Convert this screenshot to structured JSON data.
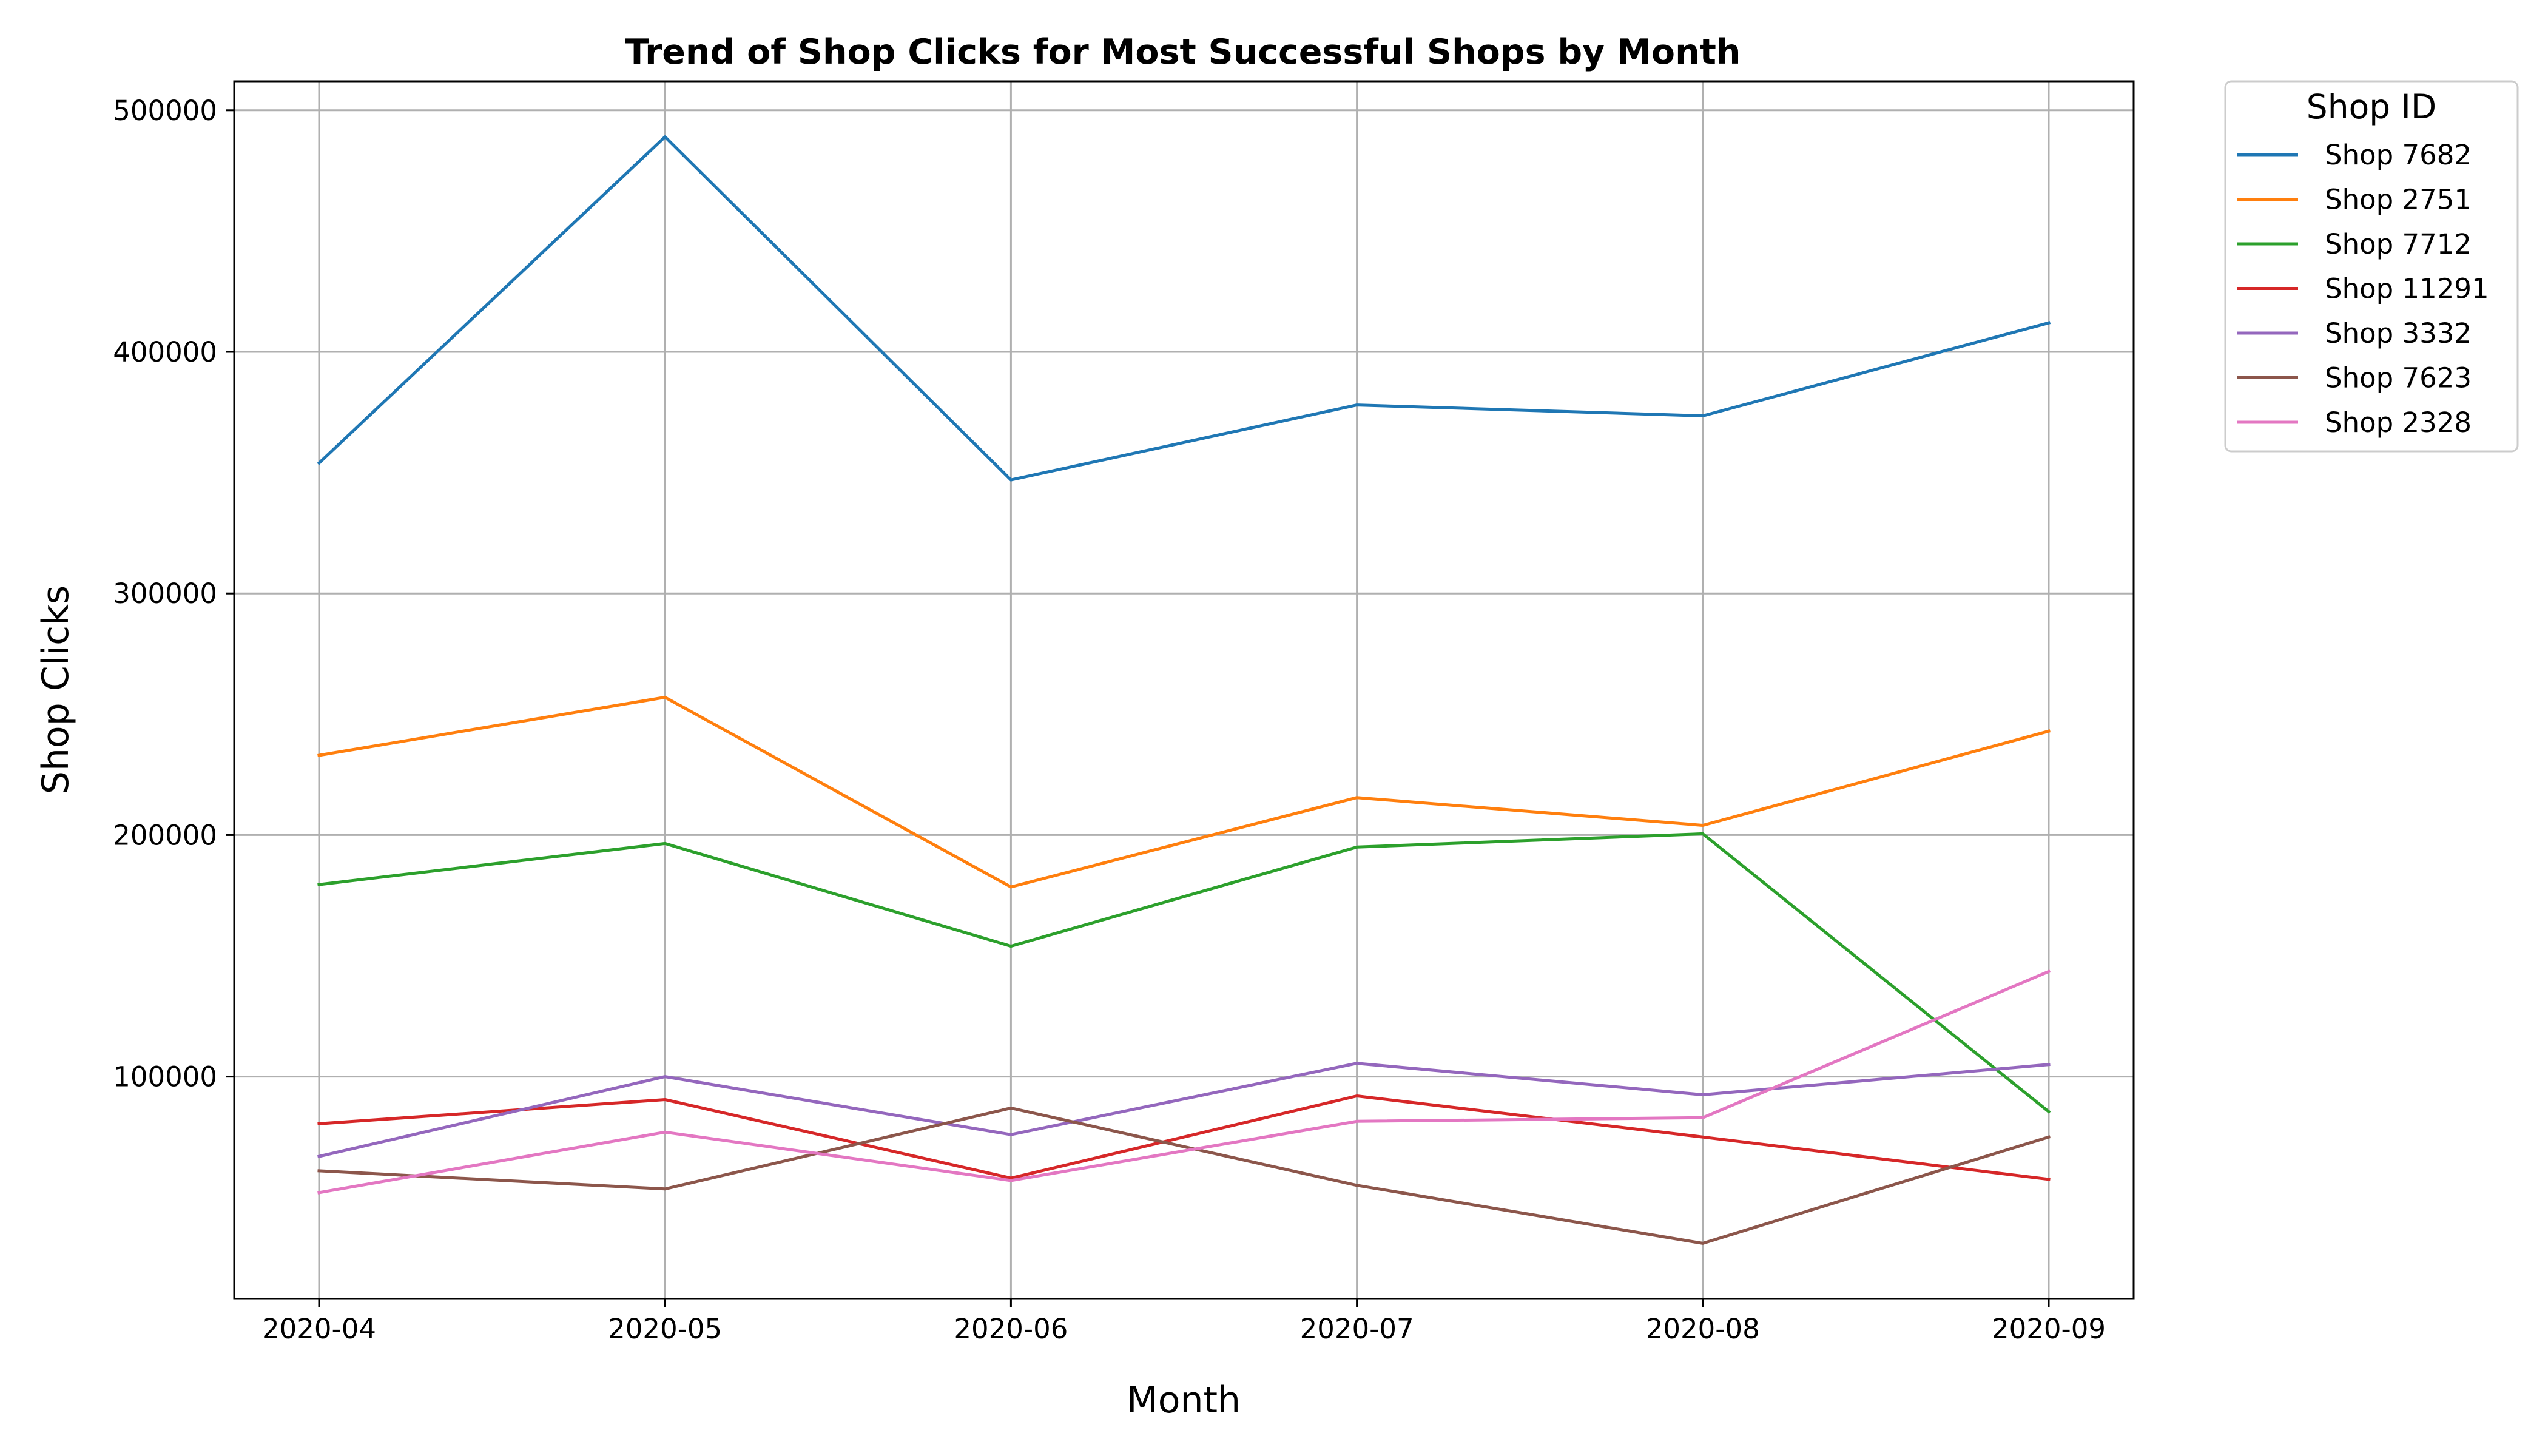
{
  "chart_data": {
    "type": "line",
    "title": "Trend of Shop Clicks for Most Successful Shops by Month",
    "xlabel": "Month",
    "ylabel": "Shop Clicks",
    "x": [
      "2020-04",
      "2020-05",
      "2020-06",
      "2020-07",
      "2020-08",
      "2020-09"
    ],
    "ylim": [
      8000,
      512000
    ],
    "yticks": [
      100000,
      200000,
      300000,
      400000,
      500000
    ],
    "grid": true,
    "legend": {
      "title": "Shop ID",
      "placement": "outside-right-top"
    },
    "series": [
      {
        "name": "Shop 7682",
        "color": "#1f77b4",
        "values": [
          354000,
          489000,
          347000,
          378000,
          373500,
          412000
        ]
      },
      {
        "name": "Shop 2751",
        "color": "#ff7f0e",
        "values": [
          233000,
          257000,
          178500,
          215500,
          204000,
          243000
        ]
      },
      {
        "name": "Shop 7712",
        "color": "#2ca02c",
        "values": [
          179500,
          196500,
          154000,
          195000,
          200500,
          85500
        ]
      },
      {
        "name": "Shop 11291",
        "color": "#d62728",
        "values": [
          80500,
          90500,
          58000,
          92000,
          75000,
          57500
        ]
      },
      {
        "name": "Shop 3332",
        "color": "#9467bd",
        "values": [
          67000,
          100000,
          76000,
          105500,
          92500,
          105000
        ]
      },
      {
        "name": "Shop 7623",
        "color": "#8c564b",
        "values": [
          61000,
          53500,
          87000,
          55000,
          31000,
          75000
        ]
      },
      {
        "name": "Shop 2328",
        "color": "#e377c2",
        "values": [
          52000,
          77000,
          57000,
          81500,
          83000,
          143500
        ]
      }
    ]
  }
}
